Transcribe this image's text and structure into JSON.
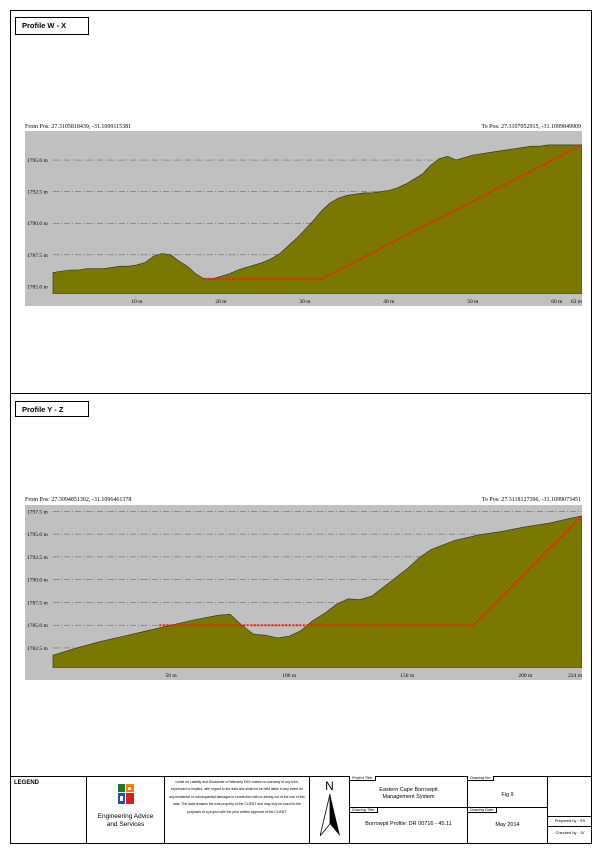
{
  "profiles": [
    {
      "title": "Profile W - X",
      "from_pos": "From Pos: 27.3105818439, -31.1099115381",
      "to_pos": "To Pos: 27.3107052915, -31.1099849909",
      "chart_data": {
        "type": "area",
        "x": [
          0,
          1,
          2,
          3,
          4,
          5,
          6,
          7,
          8,
          9,
          10,
          11,
          12,
          13,
          14,
          15,
          16,
          17,
          18,
          19,
          20,
          21,
          22,
          23,
          24,
          25,
          26,
          27,
          28,
          29,
          30,
          31,
          32,
          33,
          34,
          35,
          36,
          37,
          38,
          39,
          40,
          41,
          42,
          43,
          44,
          45,
          46,
          47,
          48,
          49,
          50,
          51,
          52,
          53,
          54,
          55,
          56,
          57,
          58,
          59,
          60,
          61,
          62,
          63
        ],
        "ground": [
          1786.1,
          1786.2,
          1786.3,
          1786.3,
          1786.4,
          1786.4,
          1786.4,
          1786.5,
          1786.6,
          1786.6,
          1786.7,
          1786.9,
          1787.4,
          1787.6,
          1787.5,
          1787.0,
          1786.6,
          1786.0,
          1785.6,
          1785.6,
          1785.8,
          1786.0,
          1786.3,
          1786.5,
          1786.7,
          1786.9,
          1787.2,
          1787.6,
          1788.2,
          1788.8,
          1789.5,
          1790.2,
          1791.0,
          1791.6,
          1792.0,
          1792.2,
          1792.3,
          1792.4,
          1792.4,
          1792.5,
          1792.6,
          1792.8,
          1793.1,
          1793.5,
          1793.9,
          1794.6,
          1795.1,
          1795.3,
          1795.0,
          1795.2,
          1795.4,
          1795.5,
          1795.6,
          1795.7,
          1795.8,
          1795.9,
          1796.0,
          1796.1,
          1796.1,
          1796.2,
          1796.2,
          1796.2,
          1796.2,
          1796.2
        ],
        "design_line": {
          "x": [
            18,
            32,
            63
          ],
          "y": [
            1785.6,
            1785.6,
            1796.2
          ]
        },
        "xticks": [
          10,
          20,
          30,
          40,
          50,
          60,
          63
        ],
        "xtick_labels": [
          "10 m",
          "20 m",
          "30 m",
          "40 m",
          "50 m",
          "60 m",
          "63 m"
        ],
        "yticks": [
          1785.0,
          1787.5,
          1790.0,
          1792.5,
          1795.0
        ],
        "ytick_labels": [
          "1785.0 m",
          "1787.5 m",
          "1790.0 m",
          "1792.5 m",
          "1795.0 m"
        ],
        "xlim": [
          0,
          63
        ],
        "ylim": [
          1784.4,
          1797.3
        ],
        "grid": true
      }
    },
    {
      "title": "Profile Y - Z",
      "from_pos": "From Pos: 27.3094851302, -31.1096461378",
      "to_pos": "To Pos: 27.3118127396, -31.1099073451",
      "chart_data": {
        "type": "area",
        "x": [
          0,
          10,
          20,
          30,
          40,
          50,
          60,
          70,
          75,
          80,
          85,
          90,
          95,
          100,
          105,
          110,
          115,
          120,
          125,
          130,
          135,
          140,
          145,
          150,
          155,
          160,
          170,
          180,
          190,
          200,
          210,
          220,
          224
        ],
        "ground": [
          1781.7,
          1782.5,
          1783.2,
          1783.8,
          1784.4,
          1785.0,
          1785.6,
          1786.1,
          1786.2,
          1785.0,
          1784.0,
          1783.9,
          1783.6,
          1783.8,
          1784.4,
          1785.5,
          1786.3,
          1787.3,
          1787.9,
          1787.8,
          1788.2,
          1789.2,
          1790.2,
          1791.2,
          1792.4,
          1793.3,
          1794.3,
          1794.9,
          1795.3,
          1795.8,
          1796.2,
          1796.8,
          1797.0
        ],
        "design_line": {
          "x": [
            45,
            80,
            110,
            178,
            224
          ],
          "y": [
            1785.0,
            1785.0,
            1785.0,
            1785.0,
            1797.0
          ]
        },
        "xticks": [
          50,
          100,
          150,
          200,
          224
        ],
        "xtick_labels": [
          "50 m",
          "100 m",
          "150 m",
          "200 m",
          "224 m"
        ],
        "yticks": [
          1782.5,
          1785.0,
          1787.5,
          1790.0,
          1792.5,
          1795.0,
          1797.5
        ],
        "ytick_labels": [
          "1782.5 m",
          "1785.0 m",
          "1787.5 m",
          "1790.0 m",
          "1792.5 m",
          "1795.0 m",
          "1797.5 m"
        ],
        "xlim": [
          0,
          224
        ],
        "ylim": [
          1780.3,
          1798.2
        ],
        "grid": true
      }
    }
  ],
  "colors": {
    "terrain": "#7a7800",
    "terrain_stroke": "#2f2e00",
    "plot_background": "#c0c0c0",
    "gridline": "#555555",
    "design_line": "#ff1a00"
  },
  "footer": {
    "legend_label": "LEGEND",
    "company_name_line1": "Engineering Advice",
    "company_name_line2": "and Services",
    "disclaimer": "Limits on Liability and Disclaimer of Warranty EAS makes no warranty of any kind, expressed or implied, with regard to the data and shall not be held liable in any event for any incidental or consequential damages in connection with or arising out of the use of this data. The data remains the sole property of the CLIENT and may only be used for the purposes of a project with the prior written approval of the CLIENT.",
    "north_label": "N",
    "project_title_label": "Project Title:",
    "project_title_line1": "Eastern Cape Borrowpit",
    "project_title_line2": "Management System",
    "drawing_title_label": "Drawing Title:",
    "drawing_title": "Borrowpit Profile: DR 00716 - 45.11",
    "drawing_no_label": "Drawing No:",
    "drawing_no": "Fig 9",
    "drawing_date_label": "Drawing Date:",
    "drawing_date": "May 2014",
    "prepared_by": "Prepared by : SS",
    "checked_by": "Checked by : JV"
  }
}
